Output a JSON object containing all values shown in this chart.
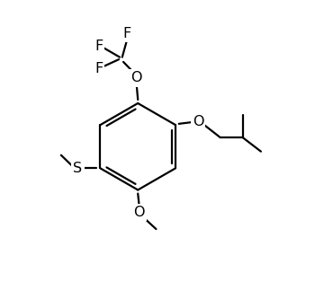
{
  "background_color": "#ffffff",
  "line_color": "#000000",
  "line_width": 1.6,
  "font_size": 11.5,
  "figsize": [
    3.5,
    3.14
  ],
  "dpi": 100,
  "xlim": [
    0,
    10
  ],
  "ylim": [
    0,
    10
  ]
}
